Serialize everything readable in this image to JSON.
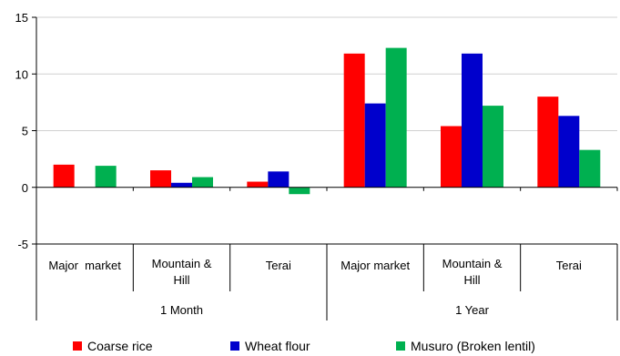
{
  "chart_data": {
    "type": "bar",
    "groups": [
      {
        "label": "1 Month",
        "categories": [
          "Major  market",
          "Mountain & Hill",
          "Terai"
        ]
      },
      {
        "label": "1 Year",
        "categories": [
          "Major market",
          "Mountain & Hill",
          "Terai"
        ]
      }
    ],
    "categories": [
      "Major  market",
      "Mountain & Hill",
      "Terai",
      "Major market",
      "Mountain & Hill",
      "Terai"
    ],
    "series": [
      {
        "name": "Coarse rice",
        "color": "#ff0000",
        "values": [
          2.0,
          1.5,
          0.5,
          11.8,
          5.4,
          8.0
        ]
      },
      {
        "name": "Wheat flour",
        "color": "#0000cc",
        "values": [
          0.0,
          0.4,
          1.4,
          7.4,
          11.8,
          6.3
        ]
      },
      {
        "name": "Musuro (Broken lentil)",
        "color": "#00b050",
        "values": [
          1.9,
          0.9,
          -0.6,
          12.3,
          7.2,
          3.3
        ]
      }
    ],
    "ylim": [
      -5,
      15
    ],
    "yticks": [
      -5,
      0,
      5,
      10,
      15
    ],
    "grid": true,
    "legend_position": "bottom",
    "title": "",
    "xlabel": "",
    "ylabel": ""
  }
}
